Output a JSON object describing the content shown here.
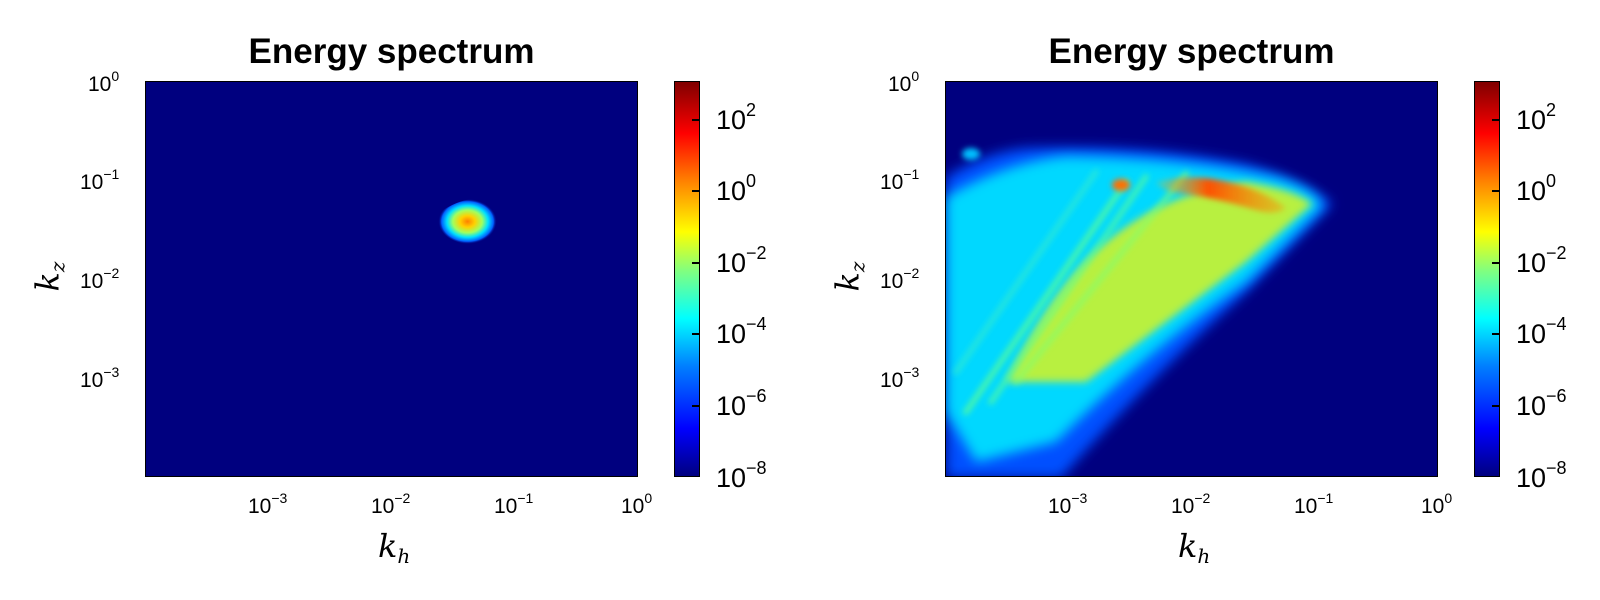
{
  "chart_data": [
    {
      "type": "heatmap",
      "title": "Energy spectrum",
      "xlabel_base": "k",
      "xlabel_sub": "h",
      "ylabel_base": "k",
      "ylabel_sub": "z",
      "xscale": "log",
      "yscale": "log",
      "xlim_exp": [
        -4,
        0
      ],
      "ylim_exp": [
        -4,
        0
      ],
      "xticks": [
        {
          "base": "10",
          "exp": "−3",
          "v": -3
        },
        {
          "base": "10",
          "exp": "−2",
          "v": -2
        },
        {
          "base": "10",
          "exp": "−1",
          "v": -1
        },
        {
          "base": "10",
          "exp": "0",
          "v": 0
        }
      ],
      "yticks": [
        {
          "base": "10",
          "exp": "0",
          "v": 0
        },
        {
          "base": "10",
          "exp": "−1",
          "v": -1
        },
        {
          "base": "10",
          "exp": "−2",
          "v": -2
        },
        {
          "base": "10",
          "exp": "−3",
          "v": -3
        }
      ],
      "colorbar": {
        "scale": "log",
        "colormap": "jet",
        "range_exp": [
          -8,
          3
        ],
        "ticks": [
          {
            "base": "10",
            "exp": "2",
            "v": 2
          },
          {
            "base": "10",
            "exp": "0",
            "v": 0
          },
          {
            "base": "10",
            "exp": "−2",
            "v": -2
          },
          {
            "base": "10",
            "exp": "−4",
            "v": -4
          },
          {
            "base": "10",
            "exp": "−6",
            "v": -6
          },
          {
            "base": "10",
            "exp": "−8",
            "v": -8
          }
        ]
      },
      "features": [
        {
          "kind": "blob",
          "kh": 0.05,
          "kz": 0.05,
          "peak": 1.0
        }
      ]
    },
    {
      "type": "heatmap",
      "title": "Energy spectrum",
      "xlabel_base": "k",
      "xlabel_sub": "h",
      "ylabel_base": "k",
      "ylabel_sub": "z",
      "xscale": "log",
      "yscale": "log",
      "xlim_exp": [
        -4,
        0
      ],
      "ylim_exp": [
        -4,
        0
      ],
      "xticks": [
        {
          "base": "10",
          "exp": "−3",
          "v": -3
        },
        {
          "base": "10",
          "exp": "−2",
          "v": -2
        },
        {
          "base": "10",
          "exp": "−1",
          "v": -1
        },
        {
          "base": "10",
          "exp": "0",
          "v": 0
        }
      ],
      "yticks": [
        {
          "base": "10",
          "exp": "0",
          "v": 0
        },
        {
          "base": "10",
          "exp": "−1",
          "v": -1
        },
        {
          "base": "10",
          "exp": "−2",
          "v": -2
        },
        {
          "base": "10",
          "exp": "−3",
          "v": -3
        }
      ],
      "colorbar": {
        "scale": "log",
        "colormap": "jet",
        "range_exp": [
          -8,
          3
        ],
        "ticks": [
          {
            "base": "10",
            "exp": "2",
            "v": 2
          },
          {
            "base": "10",
            "exp": "0",
            "v": 0
          },
          {
            "base": "10",
            "exp": "−2",
            "v": -2
          },
          {
            "base": "10",
            "exp": "−4",
            "v": -4
          },
          {
            "base": "10",
            "exp": "−6",
            "v": -6
          },
          {
            "base": "10",
            "exp": "−8",
            "v": -8
          }
        ]
      },
      "features": [
        {
          "kind": "wedge",
          "kh_range": [
            0.0001,
            0.15
          ],
          "kz_range": [
            0.0001,
            0.2
          ]
        },
        {
          "kind": "peak",
          "kh": 0.012,
          "kz": 0.08,
          "peak": 1.0
        }
      ]
    }
  ]
}
